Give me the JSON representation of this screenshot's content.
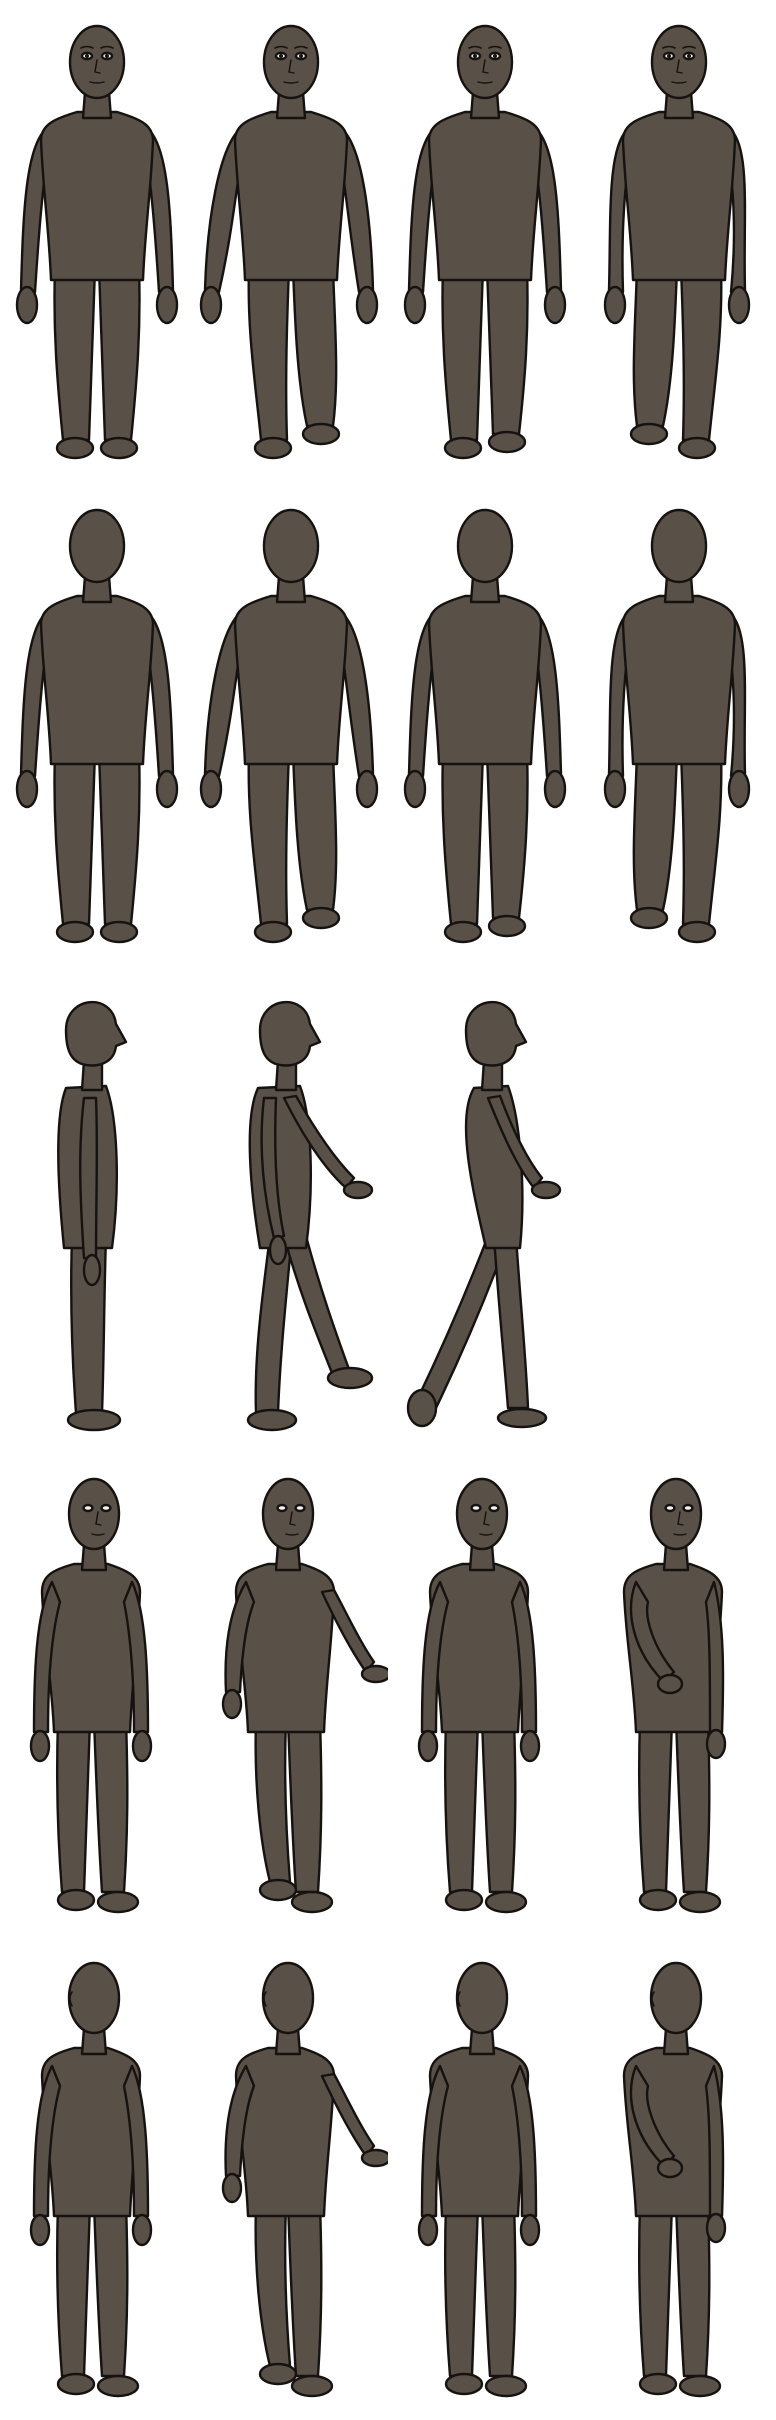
{
  "sheet": {
    "rows": [
      {
        "view": "front",
        "figures": [
          {
            "pose": "stand",
            "face": true,
            "name": "front-standing-figure"
          },
          {
            "pose": "walk-right",
            "face": true,
            "name": "front-walking-figure-a"
          },
          {
            "pose": "walk-slight",
            "face": true,
            "name": "front-walking-figure-b"
          },
          {
            "pose": "walk-left",
            "face": true,
            "name": "front-walking-figure-c"
          }
        ]
      },
      {
        "view": "back",
        "figures": [
          {
            "pose": "stand",
            "face": false,
            "name": "back-standing-figure"
          },
          {
            "pose": "walk-right",
            "face": false,
            "name": "back-walking-figure-a"
          },
          {
            "pose": "walk-slight",
            "face": false,
            "name": "back-walking-figure-b"
          },
          {
            "pose": "walk-left",
            "face": false,
            "name": "back-walking-figure-c"
          }
        ]
      },
      {
        "view": "side",
        "figures": [
          {
            "pose": "stand",
            "name": "side-standing-figure"
          },
          {
            "pose": "walk",
            "name": "side-walking-figure-a"
          },
          {
            "pose": "stride",
            "name": "side-walking-figure-b"
          }
        ]
      },
      {
        "view": "three-quarter-front",
        "figures": [
          {
            "pose": "stand",
            "name": "three-quarter-front-standing-figure"
          },
          {
            "pose": "walk",
            "name": "three-quarter-front-walking-figure-a"
          },
          {
            "pose": "stand-alt",
            "name": "three-quarter-front-walking-figure-b"
          },
          {
            "pose": "arm-across",
            "name": "three-quarter-front-walking-figure-c"
          }
        ]
      },
      {
        "view": "three-quarter-back",
        "figures": [
          {
            "pose": "stand",
            "name": "three-quarter-back-standing-figure"
          },
          {
            "pose": "walk",
            "name": "three-quarter-back-walking-figure-a"
          },
          {
            "pose": "stand-alt",
            "name": "three-quarter-back-walking-figure-b"
          },
          {
            "pose": "arm-forward",
            "name": "three-quarter-back-walking-figure-c"
          }
        ]
      }
    ],
    "colors": {
      "body": "#595048",
      "outline": "#151210",
      "eye_white": "#f2f2ee",
      "background": "#ffffff"
    }
  }
}
